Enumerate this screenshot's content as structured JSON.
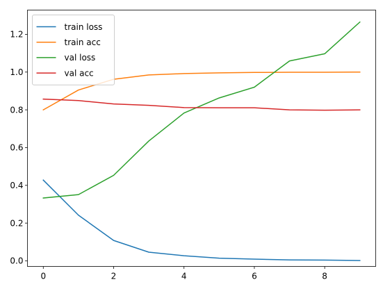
{
  "chart_data": {
    "type": "line",
    "x": [
      0,
      1,
      2,
      3,
      4,
      5,
      6,
      7,
      8,
      9
    ],
    "series": [
      {
        "name": "train loss",
        "color": "#1f77b4",
        "values": [
          0.428,
          0.242,
          0.108,
          0.046,
          0.027,
          0.014,
          0.009,
          0.005,
          0.004,
          0.002
        ]
      },
      {
        "name": "train acc",
        "color": "#ff7f0e",
        "values": [
          0.8,
          0.905,
          0.962,
          0.985,
          0.992,
          0.996,
          0.998,
          0.999,
          0.999,
          1.0
        ]
      },
      {
        "name": "val loss",
        "color": "#2ca02c",
        "values": [
          0.333,
          0.351,
          0.453,
          0.635,
          0.783,
          0.863,
          0.92,
          1.059,
          1.097,
          1.265
        ]
      },
      {
        "name": "val acc",
        "color": "#d62728",
        "values": [
          0.857,
          0.849,
          0.831,
          0.824,
          0.812,
          0.811,
          0.811,
          0.8,
          0.798,
          0.8
        ]
      }
    ],
    "xlim": [
      -0.45,
      9.45
    ],
    "ylim": [
      -0.0295,
      1.3285
    ],
    "xticks": [
      0,
      2,
      4,
      6,
      8
    ],
    "yticks": [
      0.0,
      0.2,
      0.4,
      0.6,
      0.8,
      1.0,
      1.2
    ],
    "xtick_labels": [
      "0",
      "2",
      "4",
      "6",
      "8"
    ],
    "ytick_labels": [
      "0.0",
      "0.2",
      "0.4",
      "0.6",
      "0.8",
      "1.0",
      "1.2"
    ],
    "title": "",
    "xlabel": "",
    "ylabel": "",
    "grid": false,
    "legend": "top-left"
  }
}
